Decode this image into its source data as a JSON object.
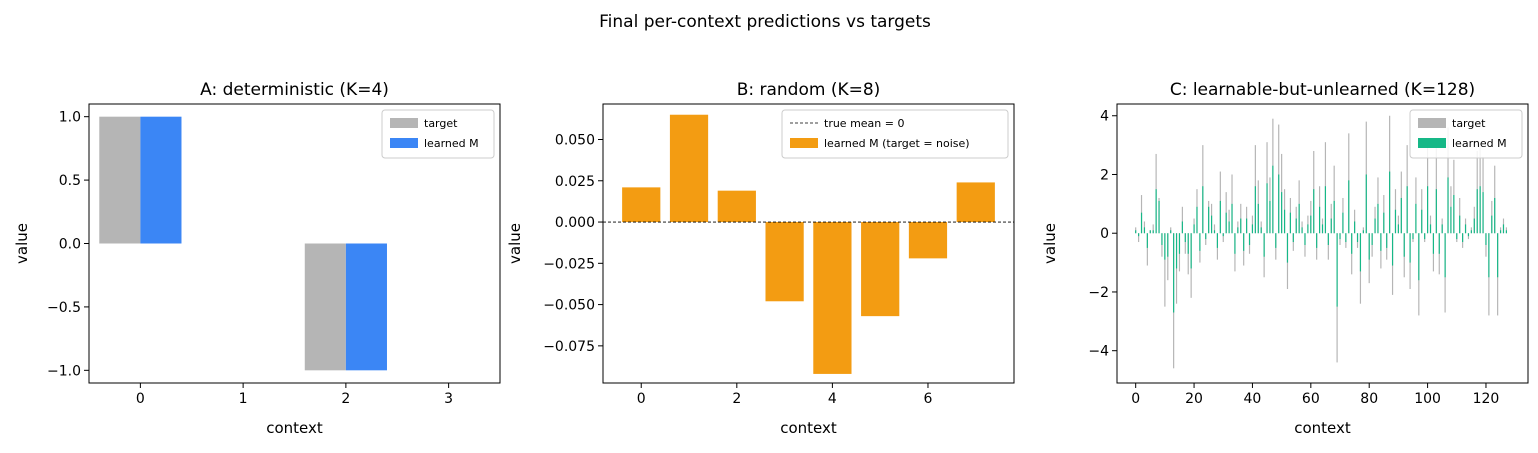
{
  "figure_title": "Final per-context predictions vs targets",
  "colors": {
    "target": "#b5b5b5",
    "learned_a": "#3b86f5",
    "learned_b": "#f39c12",
    "learned_c": "#16b887"
  },
  "chart_data": [
    {
      "type": "bar",
      "title": "A: deterministic (K=4)",
      "xlabel": "context",
      "ylabel": "value",
      "xlim": [
        -0.5,
        3.5
      ],
      "ylim": [
        -1.1,
        1.1
      ],
      "xticks": [
        0,
        1,
        2,
        3
      ],
      "yticks": [
        -1.0,
        -0.5,
        0.0,
        0.5,
        1.0
      ],
      "ytick_labels": [
        "−1.0",
        "−0.5",
        "0.0",
        "0.5",
        "1.0"
      ],
      "categories": [
        0,
        1,
        2,
        3
      ],
      "legend_position": "top-right",
      "series": [
        {
          "name": "target",
          "color": "#b5b5b5",
          "values": [
            1.0,
            0.0,
            -1.0,
            0.0
          ]
        },
        {
          "name": "learned M",
          "color": "#3b86f5",
          "values": [
            1.0,
            0.0,
            -1.0,
            0.0
          ]
        }
      ]
    },
    {
      "type": "bar",
      "title": "B: random (K=8)",
      "xlabel": "context",
      "ylabel": "value",
      "xlim": [
        -0.8,
        7.8
      ],
      "ylim": [
        -0.0975,
        0.0715
      ],
      "xticks": [
        0,
        2,
        4,
        6
      ],
      "yticks": [
        -0.075,
        -0.05,
        -0.025,
        0.0,
        0.025,
        0.05
      ],
      "ytick_labels": [
        "−0.075",
        "−0.050",
        "−0.025",
        "0.000",
        "0.025",
        "0.050"
      ],
      "categories": [
        0,
        1,
        2,
        3,
        4,
        5,
        6,
        7
      ],
      "legend_position": "top-right",
      "reference_line": {
        "name": "true mean = 0",
        "y": 0
      },
      "series": [
        {
          "name": "learned M (target = noise)",
          "color": "#f39c12",
          "values": [
            0.021,
            0.065,
            0.019,
            -0.048,
            -0.092,
            -0.057,
            -0.022,
            0.024
          ]
        }
      ]
    },
    {
      "type": "bar",
      "title": "C: learnable-but-unlearned (K=128)",
      "xlabel": "context",
      "ylabel": "value",
      "xlim": [
        -6.4,
        134.4
      ],
      "ylim": [
        -5.1,
        4.4
      ],
      "xticks": [
        0,
        20,
        40,
        60,
        80,
        100,
        120
      ],
      "yticks": [
        -4,
        -2,
        0,
        2,
        4
      ],
      "ytick_labels": [
        "−4",
        "−2",
        "0",
        "2",
        "4"
      ],
      "legend_position": "top-right",
      "series": [
        {
          "name": "target",
          "color": "#b5b5b5",
          "values": [
            0.2,
            -0.3,
            1.3,
            0.4,
            -1.1,
            0.1,
            0.3,
            2.7,
            1.2,
            -0.8,
            -2.5,
            -1.6,
            0.2,
            -4.6,
            -2.4,
            -1.3,
            0.9,
            -0.7,
            -1.4,
            -2.2,
            0.5,
            1.5,
            -1.0,
            3.0,
            -0.4,
            1.1,
            1.0,
            0.3,
            -0.9,
            2.1,
            -0.3,
            1.4,
            0.8,
            2.0,
            -1.3,
            0.4,
            1.0,
            -1.1,
            0.9,
            -0.7,
            0.6,
            3.0,
            1.8,
            0.4,
            -1.5,
            3.1,
            1.9,
            3.9,
            -0.9,
            3.7,
            2.7,
            1.5,
            -1.9,
            1.2,
            -0.6,
            0.9,
            1.8,
            0.4,
            -0.8,
            0.6,
            1.1,
            2.8,
            -0.9,
            1.6,
            0.5,
            3.1,
            -0.9,
            1.0,
            2.3,
            -4.4,
            -0.4,
            1.2,
            -0.5,
            3.4,
            -1.4,
            0.8,
            -0.5,
            -2.4,
            0.2,
            3.8,
            -1.7,
            -0.8,
            0.9,
            1.9,
            -1.2,
            1.3,
            -0.9,
            4.0,
            -2.1,
            1.5,
            0.6,
            2.1,
            -1.5,
            3.0,
            -1.9,
            -0.3,
            1.9,
            -2.8,
            1.5,
            -0.3,
            3.1,
            0.6,
            -1.3,
            2.9,
            -1.4,
            0.5,
            -2.7,
            3.6,
            1.6,
            2.5,
            -0.3,
            1.2,
            -0.5,
            0.5,
            -0.2,
            0.2,
            0.9,
            2.8,
            3.0,
            2.6,
            -0.8,
            -2.8,
            1.1,
            2.3,
            -2.8,
            0.2,
            0.5,
            0.2
          ]
        },
        {
          "name": "learned M",
          "color": "#16b887",
          "values": [
            0.1,
            -0.1,
            0.7,
            0.2,
            -0.5,
            0.1,
            0.1,
            1.5,
            1.1,
            -0.4,
            -0.9,
            -0.8,
            0.1,
            -2.7,
            -1.2,
            -0.7,
            0.4,
            -0.3,
            -0.7,
            -1.2,
            0.3,
            0.9,
            -0.6,
            1.6,
            -0.2,
            0.9,
            0.6,
            0.1,
            -0.5,
            1.1,
            -0.1,
            0.7,
            0.4,
            1.0,
            -0.7,
            0.2,
            0.5,
            -0.6,
            0.5,
            -0.4,
            0.3,
            1.6,
            1.0,
            0.2,
            -0.8,
            1.7,
            1.1,
            2.3,
            -0.5,
            2.0,
            1.4,
            0.8,
            -1.0,
            0.7,
            -0.3,
            0.5,
            1.0,
            0.2,
            -0.4,
            0.3,
            0.6,
            1.5,
            -0.5,
            0.9,
            0.3,
            1.6,
            -0.4,
            0.5,
            1.1,
            -2.5,
            -0.2,
            0.7,
            -0.3,
            1.8,
            -0.7,
            0.4,
            -0.3,
            -1.3,
            0.1,
            2.0,
            -0.9,
            -0.4,
            0.5,
            1.0,
            -0.6,
            0.7,
            -0.5,
            2.1,
            -1.1,
            0.8,
            0.3,
            1.2,
            -0.8,
            1.6,
            -1.0,
            -0.2,
            1.0,
            -1.6,
            0.8,
            -0.2,
            1.6,
            0.3,
            -0.7,
            1.5,
            -0.7,
            0.3,
            -1.5,
            1.9,
            0.9,
            1.3,
            -0.2,
            0.6,
            -0.3,
            0.3,
            -0.1,
            0.1,
            0.5,
            1.5,
            1.6,
            1.4,
            -0.4,
            -1.5,
            0.6,
            1.2,
            -1.5,
            0.1,
            0.3,
            0.1
          ]
        }
      ]
    }
  ]
}
